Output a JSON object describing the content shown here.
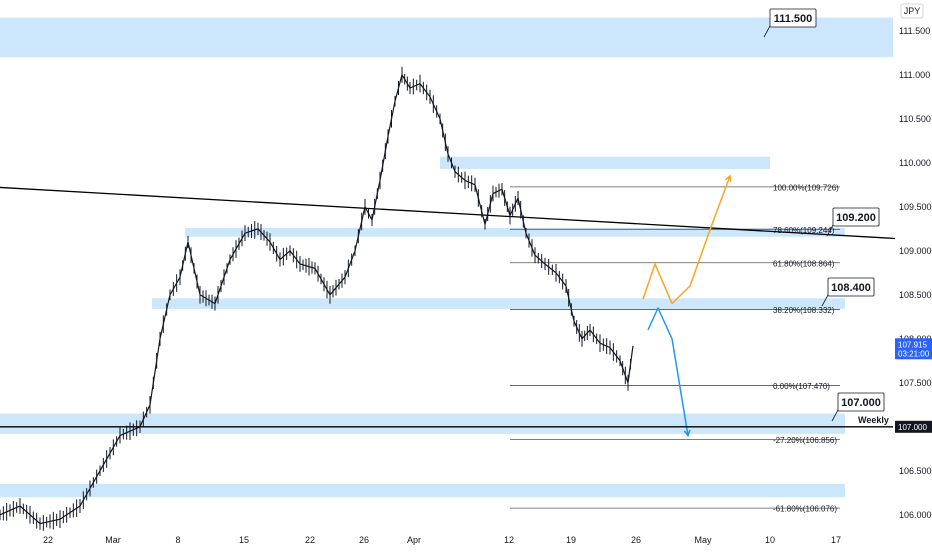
{
  "header": {
    "currency": "JPY"
  },
  "chart_data": {
    "type": "candlestick",
    "y_axis": {
      "position": "right",
      "ticks": [
        "111.500",
        "111.000",
        "110.500",
        "110.000",
        "109.500",
        "109.000",
        "108.500",
        "108.000",
        "107.500",
        "107.000",
        "106.500",
        "106.000"
      ],
      "tick_values": [
        111.5,
        111.0,
        110.5,
        110.0,
        109.5,
        109.0,
        108.5,
        108.0,
        107.5,
        107.0,
        106.5,
        106.0
      ],
      "ylim": [
        105.85,
        111.85
      ]
    },
    "x_axis": {
      "ticks": [
        "22",
        "Mar",
        "8",
        "15",
        "22",
        "26",
        "Apr",
        "12",
        "19",
        "26",
        "May",
        "10",
        "17"
      ]
    },
    "current_price": {
      "value": 107.915,
      "label": "107.915",
      "countdown": "03:21:00",
      "color": "#2962ff"
    },
    "weekly_level": {
      "value": 107.0,
      "label": "107.000",
      "name": "Weekly"
    },
    "callouts": [
      {
        "label": "111.500",
        "value": 111.5
      },
      {
        "label": "109.200",
        "value": 109.2
      },
      {
        "label": "108.400",
        "value": 108.4
      },
      {
        "label": "107.000",
        "value": 107.0
      }
    ],
    "zones": [
      {
        "low": 111.2,
        "high": 111.65
      },
      {
        "low": 109.93,
        "high": 110.07
      },
      {
        "low": 109.16,
        "high": 109.26
      },
      {
        "low": 108.34,
        "high": 108.46
      },
      {
        "low": 106.92,
        "high": 107.15
      },
      {
        "low": 106.2,
        "high": 106.35
      }
    ],
    "fibonacci": [
      {
        "label": "100.00%(109.726)",
        "value": 109.726
      },
      {
        "label": "78.60%(109.244)",
        "value": 109.244
      },
      {
        "label": "61.80%(108.864)",
        "value": 108.864
      },
      {
        "label": "38.20%(108.332)",
        "value": 108.332
      },
      {
        "label": "0.00%(107.470)",
        "value": 107.47
      },
      {
        "label": "-27.20%(106.856)",
        "value": 106.856
      },
      {
        "label": "-61.80%(106.076)",
        "value": 106.076
      }
    ],
    "series": [
      {
        "points": [
          [
            0,
            106.0
          ],
          [
            20,
            106.1
          ],
          [
            40,
            105.9
          ],
          [
            60,
            105.95
          ],
          [
            80,
            106.1
          ],
          [
            100,
            106.5
          ],
          [
            120,
            106.9
          ],
          [
            140,
            107.0
          ],
          [
            150,
            107.25
          ],
          [
            160,
            108.0
          ],
          [
            170,
            108.5
          ],
          [
            180,
            108.7
          ],
          [
            188,
            109.1
          ],
          [
            200,
            108.5
          ],
          [
            215,
            108.4
          ],
          [
            230,
            108.9
          ],
          [
            245,
            109.2
          ],
          [
            258,
            109.25
          ],
          [
            270,
            109.1
          ],
          [
            280,
            108.9
          ],
          [
            290,
            109.0
          ],
          [
            300,
            108.85
          ],
          [
            315,
            108.8
          ],
          [
            330,
            108.5
          ],
          [
            345,
            108.7
          ],
          [
            355,
            109.0
          ],
          [
            365,
            109.5
          ],
          [
            372,
            109.35
          ],
          [
            380,
            109.8
          ],
          [
            388,
            110.3
          ],
          [
            395,
            110.7
          ],
          [
            402,
            111.0
          ],
          [
            410,
            110.85
          ],
          [
            420,
            110.9
          ],
          [
            430,
            110.75
          ],
          [
            440,
            110.5
          ],
          [
            448,
            110.1
          ],
          [
            455,
            109.9
          ],
          [
            465,
            109.8
          ],
          [
            475,
            109.75
          ],
          [
            485,
            109.3
          ],
          [
            493,
            109.65
          ],
          [
            502,
            109.7
          ],
          [
            510,
            109.4
          ],
          [
            518,
            109.6
          ],
          [
            526,
            109.2
          ],
          [
            535,
            108.95
          ],
          [
            545,
            108.85
          ],
          [
            556,
            108.75
          ],
          [
            566,
            108.6
          ],
          [
            574,
            108.2
          ],
          [
            582,
            108.0
          ],
          [
            590,
            108.1
          ],
          [
            600,
            107.95
          ],
          [
            610,
            107.9
          ],
          [
            620,
            107.75
          ],
          [
            628,
            107.5
          ],
          [
            633,
            107.92
          ]
        ]
      }
    ],
    "projections": [
      {
        "color": "#f5a623",
        "points": [
          [
            643,
            108.45
          ],
          [
            655,
            108.85
          ],
          [
            672,
            108.4
          ],
          [
            690,
            108.6
          ],
          [
            712,
            109.3
          ],
          [
            730,
            109.85
          ]
        ]
      },
      {
        "color": "#2196f3",
        "points": [
          [
            648,
            108.1
          ],
          [
            658,
            108.35
          ],
          [
            672,
            108.0
          ],
          [
            688,
            106.9
          ]
        ]
      }
    ],
    "trendline": {
      "x1": 0,
      "y1": 109.72,
      "x2": 895,
      "y2": 109.14
    },
    "price_axis_color": "#131722"
  }
}
